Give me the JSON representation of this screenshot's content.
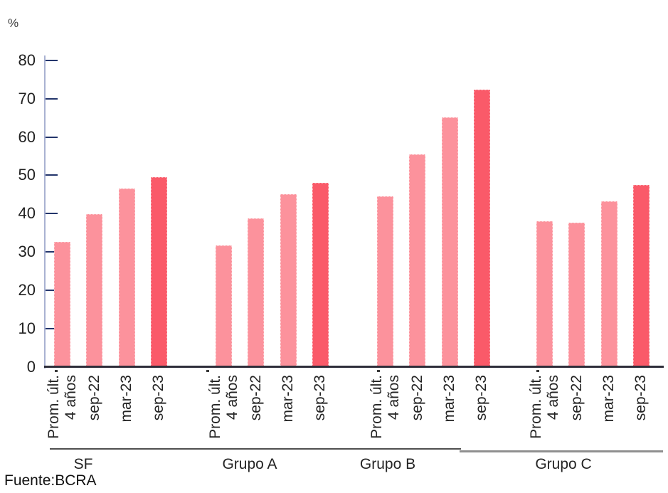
{
  "footer": {
    "source_label": "Fuente:BCRA"
  },
  "chart_data": {
    "type": "bar",
    "title": "",
    "ylabel": "%",
    "xlabel": "",
    "ylim": [
      0,
      80
    ],
    "yticks": [
      0,
      10,
      20,
      30,
      40,
      50,
      60,
      70,
      80
    ],
    "grid": false,
    "legend_position": "none",
    "bar_labels": [
      [
        "Prom. últ.",
        "4 años"
      ],
      [
        "sep-22"
      ],
      [
        "mar-23"
      ],
      [
        "sep-23"
      ]
    ],
    "highlight_index": 3,
    "colors": {
      "bar": "#FC929C",
      "bar_highlight": "#FA5A69",
      "axis_line": "#A9B2D2",
      "tick_mark": "#23356B",
      "baseline": "#2E2E3A",
      "group_line_left": "#4F4F4F",
      "group_line_right": "#8F8F8F"
    },
    "groups": [
      {
        "label": "SF",
        "values": [
          32.6,
          39.9,
          46.5,
          49.6
        ]
      },
      {
        "label": "Grupo A",
        "values": [
          31.7,
          38.8,
          45.0,
          48.0
        ]
      },
      {
        "label": "Grupo B",
        "values": [
          44.5,
          55.5,
          65.1,
          72.3
        ]
      },
      {
        "label": "Grupo C",
        "values": [
          38.0,
          37.7,
          43.2,
          47.4
        ]
      }
    ],
    "source": "Fuente:BCRA"
  }
}
